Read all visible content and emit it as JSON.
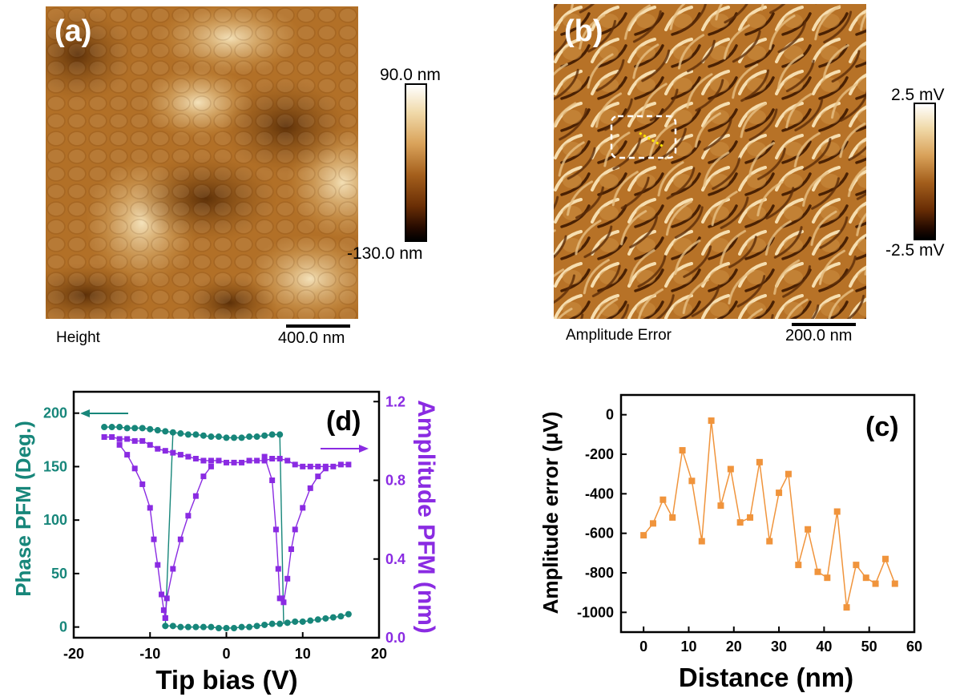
{
  "panels": {
    "a": {
      "letter": "(a)",
      "cbar_max": "90.0 nm",
      "cbar_min": "-130.0 nm",
      "channel": "Height",
      "scalebar": "400.0 nm"
    },
    "b": {
      "letter": "(b)",
      "cbar_max": "2.5 mV",
      "cbar_min": "-2.5 mV",
      "channel": "Amplitude Error",
      "scalebar": "200.0 nm"
    }
  },
  "colors": {
    "phase": "#17867a",
    "amplitude": "#8a2be2",
    "profile": "#f0943c"
  },
  "chart_data": [
    {
      "id": "d",
      "type": "line",
      "letter": "(d)",
      "xlabel": "Tip bias (V)",
      "ylabel_left": "Phase PFM (Deg.)",
      "ylabel_right": "Amplitude PFM (nm)",
      "xlim": [
        -20,
        20
      ],
      "ylim_left": [
        -10,
        220
      ],
      "ylim_right": [
        0.0,
        1.25
      ],
      "xticks": [
        -20,
        -10,
        0,
        10,
        20
      ],
      "yticks_left": [
        0,
        50,
        100,
        150,
        200
      ],
      "yticks_right": [
        "0.0",
        "0.4",
        "0.8",
        "1.2"
      ],
      "series": [
        {
          "axis": "left",
          "marker": "circle",
          "upper_branch": [
            [
              -16,
              187
            ],
            [
              -15,
              187
            ],
            [
              -14,
              187
            ],
            [
              -13,
              186
            ],
            [
              -12,
              186
            ],
            [
              -11,
              186
            ],
            [
              -10,
              185
            ],
            [
              -9,
              184
            ],
            [
              -8,
              183
            ],
            [
              -7,
              182
            ],
            [
              -6,
              181
            ],
            [
              -5,
              180
            ],
            [
              -4,
              180
            ],
            [
              -3,
              179
            ],
            [
              -2,
              178
            ],
            [
              -1,
              178
            ],
            [
              0,
              177
            ],
            [
              1,
              177
            ],
            [
              2,
              177
            ],
            [
              3,
              178
            ],
            [
              4,
              178
            ],
            [
              5,
              179
            ],
            [
              6,
              180
            ],
            [
              7,
              180
            ]
          ],
          "lower_branch": [
            [
              -8,
              1
            ],
            [
              -7,
              1
            ],
            [
              -6,
              0
            ],
            [
              -5,
              0
            ],
            [
              -4,
              0
            ],
            [
              -3,
              0
            ],
            [
              -2,
              0
            ],
            [
              -1,
              -1
            ],
            [
              0,
              -1
            ],
            [
              1,
              -1
            ],
            [
              2,
              0
            ],
            [
              3,
              0
            ],
            [
              4,
              1
            ],
            [
              5,
              2
            ],
            [
              6,
              3
            ],
            [
              7,
              3
            ],
            [
              8,
              4
            ],
            [
              9,
              5
            ],
            [
              10,
              5
            ],
            [
              11,
              6
            ],
            [
              12,
              7
            ],
            [
              13,
              8
            ],
            [
              14,
              9
            ],
            [
              15,
              10
            ],
            [
              16,
              12
            ]
          ],
          "switch_down": [
            [
              -7,
              182
            ],
            [
              -8,
              1
            ]
          ],
          "switch_up": [
            [
              7,
              180
            ],
            [
              7.5,
              4
            ]
          ]
        },
        {
          "axis": "right",
          "marker": "square",
          "points": [
            [
              -16,
              1.02
            ],
            [
              -15,
              1.02
            ],
            [
              -14,
              1.01
            ],
            [
              -13,
              1.01
            ],
            [
              -12,
              1.0
            ],
            [
              -11,
              1.0
            ],
            [
              -10,
              0.98
            ],
            [
              -9,
              0.96
            ],
            [
              -8,
              0.95
            ],
            [
              -7,
              0.94
            ],
            [
              -6,
              0.93
            ],
            [
              -5,
              0.92
            ],
            [
              -4,
              0.91
            ],
            [
              -3,
              0.9
            ],
            [
              -2,
              0.9
            ],
            [
              -1,
              0.9
            ],
            [
              0,
              0.89
            ],
            [
              1,
              0.89
            ],
            [
              2,
              0.89
            ],
            [
              3,
              0.9
            ],
            [
              4,
              0.9
            ],
            [
              5,
              0.9
            ],
            [
              6,
              0.91
            ],
            [
              7,
              0.91
            ],
            [
              8,
              0.9
            ],
            [
              9,
              0.88
            ],
            [
              10,
              0.87
            ],
            [
              11,
              0.87
            ],
            [
              12,
              0.87
            ],
            [
              13,
              0.87
            ],
            [
              14,
              0.87
            ],
            [
              15,
              0.88
            ],
            [
              16,
              0.88
            ]
          ],
          "dip_left": [
            [
              -14,
              0.98
            ],
            [
              -13,
              0.93
            ],
            [
              -12,
              0.86
            ],
            [
              -11,
              0.78
            ],
            [
              -10,
              0.66
            ],
            [
              -9.5,
              0.5
            ],
            [
              -9,
              0.37
            ],
            [
              -8.5,
              0.22
            ],
            [
              -8.2,
              0.14
            ],
            [
              -8,
              0.1
            ]
          ],
          "dip_left_rise": [
            [
              -8,
              0.1
            ],
            [
              -7.8,
              0.2
            ],
            [
              -7,
              0.35
            ],
            [
              -6,
              0.5
            ],
            [
              -5,
              0.62
            ],
            [
              -4,
              0.72
            ],
            [
              -3,
              0.82
            ],
            [
              -2,
              0.87
            ]
          ],
          "dip_right": [
            [
              5,
              0.92
            ],
            [
              6,
              0.8
            ],
            [
              6.5,
              0.55
            ],
            [
              6.8,
              0.35
            ],
            [
              7,
              0.2
            ],
            [
              7.3,
              0.2
            ]
          ],
          "dip_right_rise": [
            [
              7.5,
              0.18
            ],
            [
              8,
              0.3
            ],
            [
              8.5,
              0.45
            ],
            [
              9,
              0.55
            ],
            [
              10,
              0.66
            ],
            [
              11,
              0.76
            ],
            [
              12,
              0.82
            ],
            [
              13,
              0.86
            ]
          ]
        }
      ]
    },
    {
      "id": "c",
      "type": "line",
      "letter": "(c)",
      "xlabel": "Distance (nm)",
      "ylabel": "Amplitude error (μV)",
      "xlim": [
        -5,
        60
      ],
      "ylim": [
        -1100,
        100
      ],
      "xticks": [
        0,
        10,
        20,
        30,
        40,
        50,
        60
      ],
      "yticks": [
        0,
        -200,
        -400,
        -600,
        -800,
        -1000
      ],
      "x": [
        0,
        2.1,
        4.3,
        6.4,
        8.6,
        10.7,
        12.9,
        15,
        17.1,
        19.3,
        21.4,
        23.6,
        25.7,
        27.9,
        30,
        32.1,
        34.3,
        36.4,
        38.6,
        40.7,
        42.9,
        45,
        47.1,
        49.3,
        51.4,
        53.6,
        55.7
      ],
      "y": [
        -610,
        -550,
        -430,
        -520,
        -180,
        -335,
        -640,
        -30,
        -460,
        -275,
        -545,
        -520,
        -240,
        -640,
        -395,
        -300,
        -760,
        -580,
        -795,
        -825,
        -490,
        -975,
        -760,
        -825,
        -855,
        -730,
        -855
      ]
    }
  ]
}
